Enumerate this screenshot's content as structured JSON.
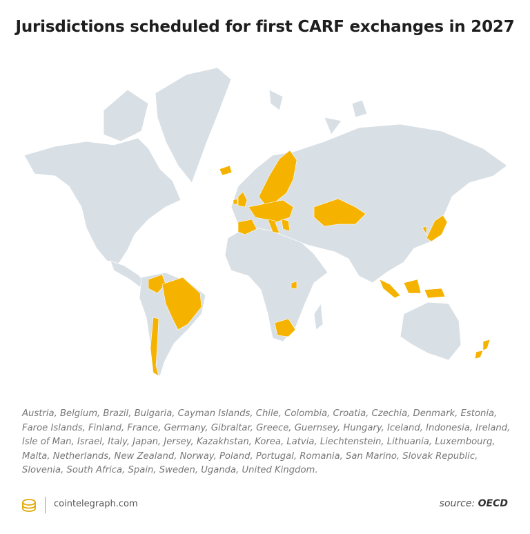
{
  "header": {
    "title": "Jurisdictions scheduled for first CARF exchanges in 2027"
  },
  "description": "Austria, Belgium, Brazil, Bulgaria, Cayman Islands, Chile, Colombia, Croatia, Czechia, Denmark, Estonia, Faroe Islands, Finland, France, Germany, Gibraltar, Greece, Guernsey, Hungary, Iceland, Indonesia, Ireland, Isle of Man, Israel, Italy, Japan, Jersey, Kazakhstan, Korea, Latvia, Liechtenstein, Lithuania, Luxembourg, Malta, Netherlands, New Zealand, Norway, Poland, Portugal, Romania, San Marino, Slovak Republic, Slovenia, South Africa, Spain, Sweden, Uganda, United Kingdom.",
  "footer": {
    "brand": "cointelegraph.com",
    "source_label": "source:",
    "source": "OECD"
  }
}
